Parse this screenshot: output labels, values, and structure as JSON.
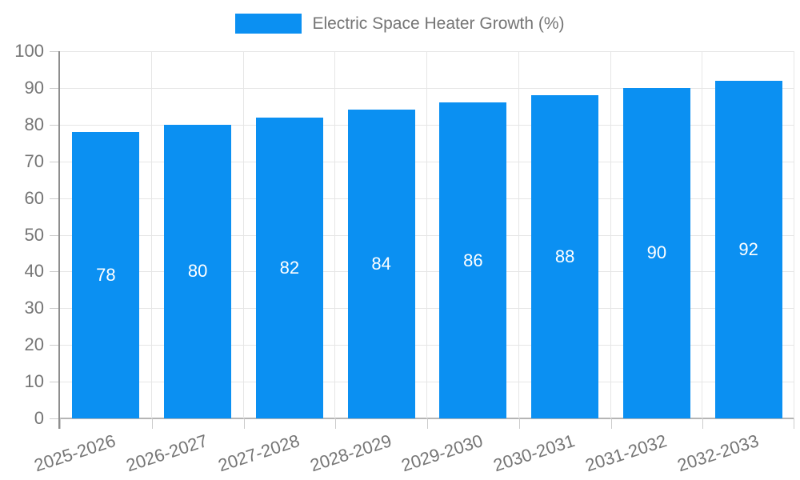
{
  "chart_data": {
    "type": "bar",
    "title": "",
    "legend": {
      "label": "Electric Space Heater Growth (%)",
      "position": "top-center"
    },
    "categories": [
      "2025-2026",
      "2026-2027",
      "2027-2028",
      "2028-2029",
      "2029-2030",
      "2030-2031",
      "2031-2032",
      "2032-2033"
    ],
    "values": [
      78,
      80,
      82,
      84,
      86,
      88,
      90,
      92
    ],
    "xlabel": "",
    "ylabel": "",
    "ylim": [
      0,
      100
    ],
    "yticks": [
      0,
      10,
      20,
      30,
      40,
      50,
      60,
      70,
      80,
      90,
      100
    ],
    "grid": "on",
    "value_labels": "inside-center",
    "colors": {
      "bar": "#0b90f2",
      "axis_text": "#757575",
      "gridline": "#e6e6e6",
      "axis_line": "#8e8e8e",
      "value_label": "#ffffff"
    }
  }
}
